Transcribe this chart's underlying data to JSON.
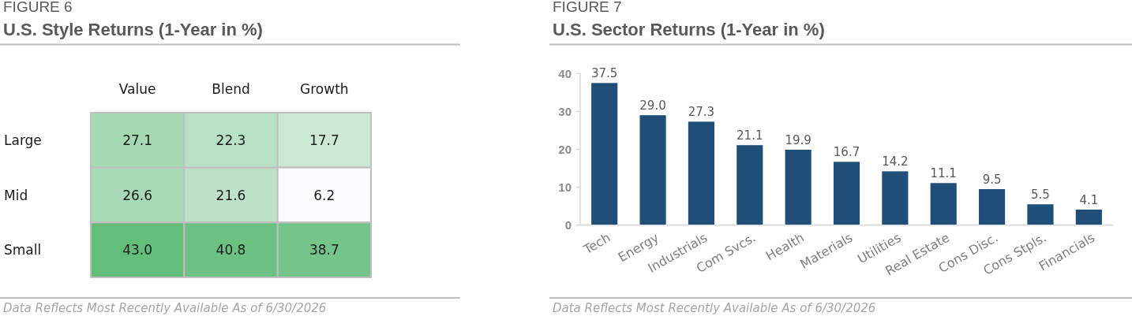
{
  "chart_data": [
    {
      "type": "heatmap",
      "title": "U.S. Style Returns (1-Year in %)",
      "annotations": [
        "FIGURE 6",
        "Data Reflects Most Recently Available As of 6/30/2026"
      ],
      "categories": [
        "Value",
        "Blend",
        "Growth"
      ],
      "y_categories": [
        "Large",
        "Mid",
        "Small"
      ],
      "cells": [
        [
          27.1,
          22.3,
          17.7
        ],
        [
          26.6,
          21.6,
          6.2
        ],
        [
          43.0,
          40.8,
          38.7
        ]
      ],
      "cell_labels": [
        [
          "27.1",
          "22.3",
          "17.7"
        ],
        [
          "26.6",
          "21.6",
          "6.2"
        ],
        [
          "43.0",
          "40.8",
          "38.7"
        ]
      ]
    },
    {
      "type": "bar",
      "title": "U.S. Sector Returns (1-Year in %)",
      "annotations": [
        "FIGURE 7",
        "Data Reflects Most Recently Available As of 6/30/2026"
      ],
      "categories": [
        "Tech",
        "Energy",
        "Industrials",
        "Com Svcs.",
        "Health",
        "Materials",
        "Utilities",
        "Real Estate",
        "Cons Disc.",
        "Cons Stpls.",
        "Financials"
      ],
      "values": [
        37.5,
        29.0,
        27.3,
        21.1,
        19.9,
        16.7,
        14.2,
        11.1,
        9.5,
        5.5,
        4.1
      ],
      "value_labels": [
        "37.5",
        "29.0",
        "27.3",
        "21.1",
        "19.9",
        "16.7",
        "14.2",
        "11.1",
        "9.5",
        "5.5",
        "4.1"
      ],
      "color": "#1f4e79",
      "ylim": [
        0,
        40
      ],
      "yticks": [
        0,
        10,
        20,
        30,
        40
      ]
    }
  ]
}
